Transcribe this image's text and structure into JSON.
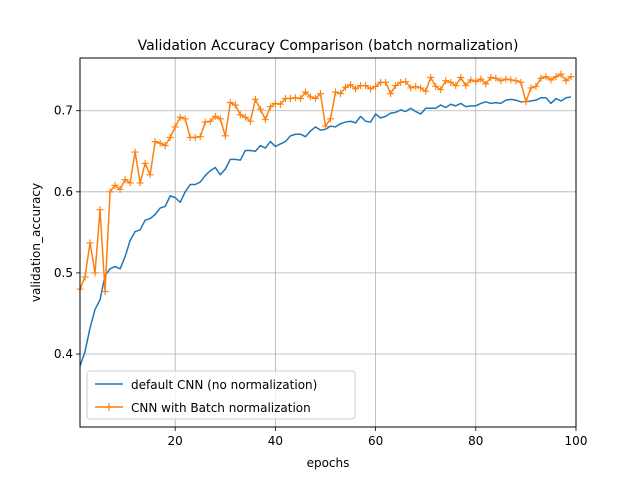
{
  "chart_data": {
    "type": "line",
    "title": "Validation Accuracy Comparison (batch normalization)",
    "xlabel": "epochs",
    "ylabel": "validation_accuracy",
    "xlim": [
      1,
      100
    ],
    "ylim": [
      0.31,
      0.765
    ],
    "x_ticks": [
      20,
      40,
      60,
      80,
      100
    ],
    "y_ticks": [
      0.4,
      0.5,
      0.6,
      0.7
    ],
    "x_tick_labels": [
      "20",
      "40",
      "60",
      "80",
      "100"
    ],
    "y_tick_labels": [
      "0.4",
      "0.5",
      "0.6",
      "0.7"
    ],
    "grid": true,
    "legend_position": "lower-left",
    "colors": {
      "default": "#1f77b4",
      "batchnorm": "#ff7f0e"
    },
    "x": [
      1,
      2,
      3,
      4,
      5,
      6,
      7,
      8,
      9,
      10,
      11,
      12,
      13,
      14,
      15,
      16,
      17,
      18,
      19,
      20,
      21,
      22,
      23,
      24,
      25,
      26,
      27,
      28,
      29,
      30,
      31,
      32,
      33,
      34,
      35,
      36,
      37,
      38,
      39,
      40,
      41,
      42,
      43,
      44,
      45,
      46,
      47,
      48,
      49,
      50,
      51,
      52,
      53,
      54,
      55,
      56,
      57,
      58,
      59,
      60,
      61,
      62,
      63,
      64,
      65,
      66,
      67,
      68,
      69,
      70,
      71,
      72,
      73,
      74,
      75,
      76,
      77,
      78,
      79,
      80,
      81,
      82,
      83,
      84,
      85,
      86,
      87,
      88,
      89,
      90,
      91,
      92,
      93,
      94,
      95,
      96,
      97,
      98,
      99
    ],
    "series": [
      {
        "name": "default CNN (no normalization)",
        "marker": "none",
        "values": [
          0.385,
          0.403,
          0.432,
          0.455,
          0.467,
          0.497,
          0.505,
          0.508,
          0.505,
          0.52,
          0.54,
          0.551,
          0.553,
          0.565,
          0.567,
          0.572,
          0.58,
          0.582,
          0.595,
          0.593,
          0.587,
          0.6,
          0.609,
          0.609,
          0.612,
          0.62,
          0.626,
          0.63,
          0.621,
          0.628,
          0.64,
          0.64,
          0.639,
          0.651,
          0.651,
          0.65,
          0.657,
          0.654,
          0.662,
          0.656,
          0.659,
          0.662,
          0.669,
          0.671,
          0.671,
          0.668,
          0.675,
          0.68,
          0.676,
          0.677,
          0.681,
          0.68,
          0.684,
          0.686,
          0.687,
          0.685,
          0.693,
          0.687,
          0.686,
          0.696,
          0.691,
          0.693,
          0.697,
          0.698,
          0.701,
          0.699,
          0.703,
          0.699,
          0.696,
          0.703,
          0.703,
          0.703,
          0.707,
          0.704,
          0.708,
          0.706,
          0.709,
          0.705,
          0.706,
          0.706,
          0.709,
          0.711,
          0.709,
          0.71,
          0.709,
          0.713,
          0.714,
          0.713,
          0.711,
          0.711,
          0.712,
          0.713,
          0.716,
          0.716,
          0.709,
          0.715,
          0.712,
          0.716,
          0.717
        ]
      },
      {
        "name": "CNN with Batch normalization",
        "marker": "+",
        "values": [
          0.48,
          0.495,
          0.537,
          0.5,
          0.578,
          0.477,
          0.6,
          0.608,
          0.603,
          0.615,
          0.611,
          0.649,
          0.611,
          0.635,
          0.621,
          0.662,
          0.66,
          0.657,
          0.667,
          0.68,
          0.692,
          0.69,
          0.667,
          0.667,
          0.668,
          0.686,
          0.687,
          0.693,
          0.69,
          0.669,
          0.71,
          0.707,
          0.695,
          0.692,
          0.687,
          0.714,
          0.702,
          0.689,
          0.705,
          0.709,
          0.708,
          0.715,
          0.715,
          0.716,
          0.715,
          0.723,
          0.717,
          0.715,
          0.721,
          0.681,
          0.69,
          0.723,
          0.721,
          0.729,
          0.732,
          0.727,
          0.731,
          0.731,
          0.727,
          0.73,
          0.735,
          0.735,
          0.721,
          0.731,
          0.735,
          0.736,
          0.728,
          0.73,
          0.728,
          0.724,
          0.741,
          0.73,
          0.726,
          0.737,
          0.735,
          0.731,
          0.741,
          0.731,
          0.738,
          0.736,
          0.739,
          0.733,
          0.741,
          0.74,
          0.737,
          0.739,
          0.738,
          0.737,
          0.735,
          0.711,
          0.728,
          0.73,
          0.74,
          0.742,
          0.738,
          0.742,
          0.745,
          0.737,
          0.742
        ]
      }
    ]
  }
}
